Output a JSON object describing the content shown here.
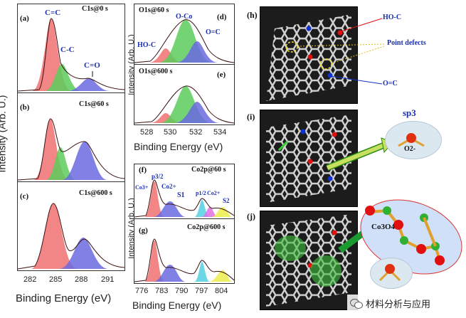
{
  "left_column": {
    "ylabel": "Intensity (Arb. U.)",
    "xlabel": "Binding Energy (eV)",
    "xticks": [
      "282",
      "285",
      "288",
      "291"
    ],
    "panels": [
      {
        "id": "(a)",
        "title": "C1s@0 s",
        "peaks": [
          "C=C",
          "C-C",
          "C=O"
        ]
      },
      {
        "id": "(b)",
        "title": "C1s@60 s"
      },
      {
        "id": "(c)",
        "title": "C1s@600 s"
      }
    ]
  },
  "middle_top": {
    "ylabel": "Intensity (Arb. U.)",
    "xlabel": "Binding Energy (eV)",
    "xticks": [
      "528",
      "530",
      "532",
      "534"
    ],
    "panels": [
      {
        "id": "(d)",
        "title": "O1s@60 s",
        "peaks": [
          "O-Co",
          "HO-C",
          "O=C"
        ]
      },
      {
        "id": "(e)",
        "title": "O1s@600 s"
      }
    ]
  },
  "middle_bottom": {
    "ylabel": "Intensity (Arb. U.)",
    "xlabel": "Binding Energy (eV)",
    "xticks": [
      "776",
      "783",
      "790",
      "797",
      "804"
    ],
    "panels": [
      {
        "id": "(f)",
        "title": "Co2p@60 s",
        "peaks": [
          "Co3+",
          "p3/2",
          "Co2+",
          "S1",
          "p1/2",
          "Co2+",
          "S2"
        ]
      },
      {
        "id": "(g)",
        "title": "Co2p@600 s"
      }
    ]
  },
  "right_column": {
    "panels": [
      {
        "id": "(h)",
        "labels": [
          "HO-C",
          "Point defects",
          "O=C"
        ]
      },
      {
        "id": "(i)",
        "labels": [
          "sp3",
          "O2-"
        ]
      },
      {
        "id": "(j)",
        "labels": [
          "Co3O4"
        ]
      }
    ]
  },
  "watermark": "材料分析与应用",
  "colors": {
    "red": "#f07070",
    "green": "#5ccc5c",
    "blue": "#6a6ae0",
    "cyan": "#55d0e0",
    "magenta": "#e070e0",
    "yellow": "#eeee55",
    "label_blue": "#1a2fb0"
  }
}
